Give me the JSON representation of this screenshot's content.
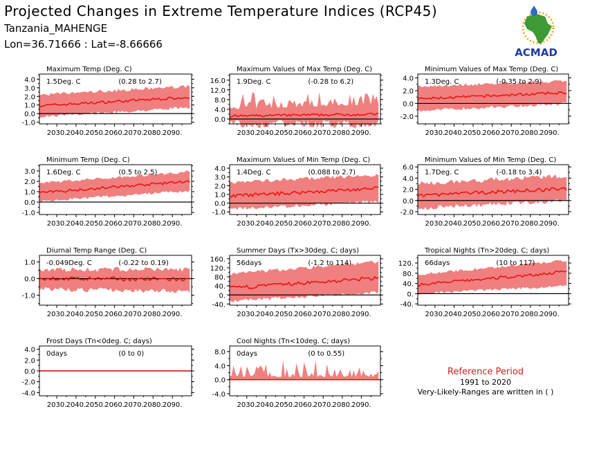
{
  "header": {
    "title": "Projected Changes in Extreme Temperature Indices (RCP45)",
    "location": "Tanzania_MAHENGE",
    "coords": "Lon=36.71666 : Lat=-8.66666"
  },
  "logo": {
    "text": "ACMAD",
    "icon": "africa-logo-icon",
    "colors": {
      "africa": "#3d9a35",
      "text": "#1f3d99",
      "drop": "#2a6cc4",
      "sun": "#f2a81d"
    }
  },
  "legend": {
    "title": "Reference Period",
    "years": "1991 to 2020",
    "note": "Very-Likely-Ranges are written in ( )"
  },
  "colors": {
    "band": "#f08080",
    "line": "#ee1111",
    "zero": "#000000"
  },
  "chart_data": [
    {
      "type": "area",
      "title": "Maximum Temp (Deg. C)",
      "value": "1.5Deg. C",
      "range": "(0.28 to 2.7)",
      "xlim": [
        2021,
        2100
      ],
      "ylim": [
        -1.2,
        4.6
      ],
      "yticks": [
        "4.0",
        "3.0",
        "2.0",
        "1.0",
        "0.0",
        "-1.0"
      ],
      "ytick_values": [
        4,
        3,
        2,
        1,
        0,
        -1
      ],
      "xticks": [
        "2030.",
        "2040.",
        "2050.",
        "2060.",
        "2070.",
        "2080.",
        "2090."
      ],
      "xtick_values": [
        2030,
        2040,
        2050,
        2060,
        2070,
        2080,
        2090
      ],
      "median": {
        "start": 0.9,
        "end": 1.9,
        "noise": 0.15
      },
      "band": {
        "low_start": -0.2,
        "low_end": 0.9,
        "high_start": 2.0,
        "high_end": 3.0,
        "noise": 0.35
      }
    },
    {
      "type": "area",
      "title": "Maximum Values of Max Temp (Deg. C)",
      "value": "1.9Deg. C",
      "range": "(-0.28 to 6.2)",
      "xlim": [
        2021,
        2100
      ],
      "ylim": [
        -2.0,
        18.5
      ],
      "yticks": [
        "16.0",
        "12.0",
        "8.0",
        "4.0",
        "0.0"
      ],
      "ytick_values": [
        16,
        12,
        8,
        4,
        0
      ],
      "xticks": [
        "2030.",
        "2040.",
        "2050.",
        "2060.",
        "2070.",
        "2080.",
        "2090."
      ],
      "xtick_values": [
        2030,
        2040,
        2050,
        2060,
        2070,
        2080,
        2090
      ],
      "median": {
        "start": 1.2,
        "end": 2.0,
        "noise": 0.5
      },
      "band": {
        "low_start": -0.5,
        "low_end": -0.3,
        "high_start": 4.0,
        "high_end": 6.0,
        "noise": 3.5,
        "spiky": true
      }
    },
    {
      "type": "area",
      "title": "Minimum Values of Max Temp (Deg. C)",
      "value": "1.3Deg. C",
      "range": "(-0.35 to 2.9)",
      "xlim": [
        2021,
        2100
      ],
      "ylim": [
        -3.2,
        4.6
      ],
      "yticks": [
        "4.0",
        "2.0",
        "0.0",
        "-2.0"
      ],
      "ytick_values": [
        4,
        2,
        0,
        -2
      ],
      "xticks": [
        "2030.",
        "2040.",
        "2050.",
        "2060.",
        "2070.",
        "2080.",
        "2090."
      ],
      "xtick_values": [
        2030,
        2040,
        2050,
        2060,
        2070,
        2080,
        2090
      ],
      "median": {
        "start": 0.7,
        "end": 1.7,
        "noise": 0.2
      },
      "band": {
        "low_start": -0.9,
        "low_end": 0.2,
        "high_start": 2.4,
        "high_end": 3.3,
        "noise": 0.5
      }
    },
    {
      "type": "area",
      "title": "Minimum Temp (Deg. C)",
      "value": "1.6Deg. C",
      "range": "(0.5 to 2.5)",
      "xlim": [
        2021,
        2100
      ],
      "ylim": [
        -1.2,
        3.6
      ],
      "yticks": [
        "3.0",
        "2.0",
        "1.0",
        "0.0",
        "-1.0"
      ],
      "ytick_values": [
        3,
        2,
        1,
        0,
        -1
      ],
      "xticks": [
        "2030.",
        "2040.",
        "2050.",
        "2060.",
        "2070.",
        "2080.",
        "2090."
      ],
      "xtick_values": [
        2030,
        2040,
        2050,
        2060,
        2070,
        2080,
        2090
      ],
      "median": {
        "start": 0.9,
        "end": 2.0,
        "noise": 0.12
      },
      "band": {
        "low_start": 0.2,
        "low_end": 1.2,
        "high_start": 1.7,
        "high_end": 2.8,
        "noise": 0.25
      }
    },
    {
      "type": "area",
      "title": "Maximum Values of Min Temp (Deg. C)",
      "value": "1.4Deg. C",
      "range": "(0.088 to 2.7)",
      "xlim": [
        2021,
        2100
      ],
      "ylim": [
        -1.3,
        4.4
      ],
      "yticks": [
        "4.0",
        "3.0",
        "2.0",
        "1.0",
        "0.0",
        "-1.0"
      ],
      "ytick_values": [
        4,
        3,
        2,
        1,
        0,
        -1
      ],
      "xticks": [
        "2030.",
        "2040.",
        "2050.",
        "2060.",
        "2070.",
        "2080.",
        "2090."
      ],
      "xtick_values": [
        2030,
        2040,
        2050,
        2060,
        2070,
        2080,
        2090
      ],
      "median": {
        "start": 0.8,
        "end": 1.7,
        "noise": 0.2
      },
      "band": {
        "low_start": -0.5,
        "low_end": 0.4,
        "high_start": 2.2,
        "high_end": 3.0,
        "noise": 0.4
      }
    },
    {
      "type": "area",
      "title": "Minimum Values of Min Temp (Deg. C)",
      "value": "1.7Deg. C",
      "range": "(-0.18 to 3.4)",
      "xlim": [
        2021,
        2100
      ],
      "ylim": [
        -2.5,
        6.4
      ],
      "yticks": [
        "6.0",
        "4.0",
        "2.0",
        "0.0",
        "-2.0"
      ],
      "ytick_values": [
        6,
        4,
        2,
        0,
        -2
      ],
      "xticks": [
        "2030.",
        "2040.",
        "2050.",
        "2060.",
        "2070.",
        "2080.",
        "2090."
      ],
      "xtick_values": [
        2030,
        2040,
        2050,
        2060,
        2070,
        2080,
        2090
      ],
      "median": {
        "start": 0.9,
        "end": 2.1,
        "noise": 0.3
      },
      "band": {
        "low_start": -1.0,
        "low_end": 0.4,
        "high_start": 2.6,
        "high_end": 4.0,
        "noise": 0.8
      }
    },
    {
      "type": "area",
      "title": "Diurnal Temp Range (Deg. C)",
      "value": "-0.049Deg. C",
      "range": "(-0.22 to 0.19)",
      "xlim": [
        2021,
        2100
      ],
      "ylim": [
        -1.6,
        1.4
      ],
      "yticks": [
        "1.0",
        "0.0",
        "-1.0"
      ],
      "ytick_values": [
        1,
        0,
        -1
      ],
      "xticks": [
        "2030.",
        "2040.",
        "2050.",
        "2060.",
        "2070.",
        "2080.",
        "2090."
      ],
      "xtick_values": [
        2030,
        2040,
        2050,
        2060,
        2070,
        2080,
        2090
      ],
      "median": {
        "start": 0.0,
        "end": -0.05,
        "noise": 0.12
      },
      "band": {
        "low_start": -0.5,
        "low_end": -0.6,
        "high_start": 0.4,
        "high_end": 0.4,
        "noise": 0.3
      }
    },
    {
      "type": "area",
      "title": "Summer Days (Tx>30deg. C; days)",
      "value": "56days",
      "range": "(-1.2 to 114)",
      "xlim": [
        2021,
        2100
      ],
      "ylim": [
        -45,
        175
      ],
      "yticks": [
        "160.",
        "120.",
        "80.",
        "40.",
        "0.",
        "-40."
      ],
      "ytick_values": [
        160,
        120,
        80,
        40,
        0,
        -40
      ],
      "xticks": [
        "2030.",
        "2040.",
        "2050.",
        "2060.",
        "2070.",
        "2080.",
        "2090."
      ],
      "xtick_values": [
        2030,
        2040,
        2050,
        2060,
        2070,
        2080,
        2090
      ],
      "median": {
        "start": 30,
        "end": 75,
        "noise": 8
      },
      "band": {
        "low_start": -20,
        "low_end": 20,
        "high_start": 85,
        "high_end": 140,
        "noise": 15
      }
    },
    {
      "type": "area",
      "title": "Tropical Nights (Tn>20deg. C; days)",
      "value": "66days",
      "range": "(10 to 117)",
      "xlim": [
        2021,
        2100
      ],
      "ylim": [
        -45,
        150
      ],
      "yticks": [
        "120.",
        "80.",
        "40.",
        "0.",
        "-40."
      ],
      "ytick_values": [
        120,
        80,
        40,
        0,
        -40
      ],
      "xticks": [
        "2030.",
        "2040.",
        "2050.",
        "2060.",
        "2070.",
        "2080.",
        "2090."
      ],
      "xtick_values": [
        2030,
        2040,
        2050,
        2060,
        2070,
        2080,
        2090
      ],
      "median": {
        "start": 35,
        "end": 85,
        "noise": 6
      },
      "band": {
        "low_start": 5,
        "low_end": 35,
        "high_start": 70,
        "high_end": 125,
        "noise": 10
      }
    },
    {
      "type": "area",
      "title": "Frost Days (Tn<0deg. C; days)",
      "value": "0days",
      "range": "(0 to 0)",
      "xlim": [
        2021,
        2100
      ],
      "ylim": [
        -4.6,
        4.6
      ],
      "yticks": [
        "4.0",
        "2.0",
        "0.0",
        "-2.0",
        "-4.0"
      ],
      "ytick_values": [
        4,
        2,
        0,
        -2,
        -4
      ],
      "xticks": [
        "2030.",
        "2040.",
        "2050.",
        "2060.",
        "2070.",
        "2080.",
        "2090."
      ],
      "xtick_values": [
        2030,
        2040,
        2050,
        2060,
        2070,
        2080,
        2090
      ],
      "median": {
        "start": 0,
        "end": 0,
        "noise": 0
      },
      "band": {
        "low_start": 0,
        "low_end": 0,
        "high_start": 0,
        "high_end": 0,
        "noise": 0
      }
    },
    {
      "type": "area",
      "title": "Cool Nights (Tn<10deg. C; days)",
      "value": "0days",
      "range": "(0 to 0.55)",
      "xlim": [
        2021,
        2100
      ],
      "ylim": [
        -4.6,
        9.6
      ],
      "yticks": [
        "8.0",
        "4.0",
        "0.0",
        "-4.0"
      ],
      "ytick_values": [
        8,
        4,
        0,
        -4
      ],
      "xticks": [
        "2030.",
        "2040.",
        "2050.",
        "2060.",
        "2070.",
        "2080.",
        "2090."
      ],
      "xtick_values": [
        2030,
        2040,
        2050,
        2060,
        2070,
        2080,
        2090
      ],
      "median": {
        "start": 0,
        "end": 0,
        "noise": 0
      },
      "band": {
        "low_start": 0,
        "low_end": 0,
        "high_start": 0.8,
        "high_end": 0.8,
        "noise": 2.5,
        "spiky": true,
        "floor_zero": true
      }
    }
  ]
}
